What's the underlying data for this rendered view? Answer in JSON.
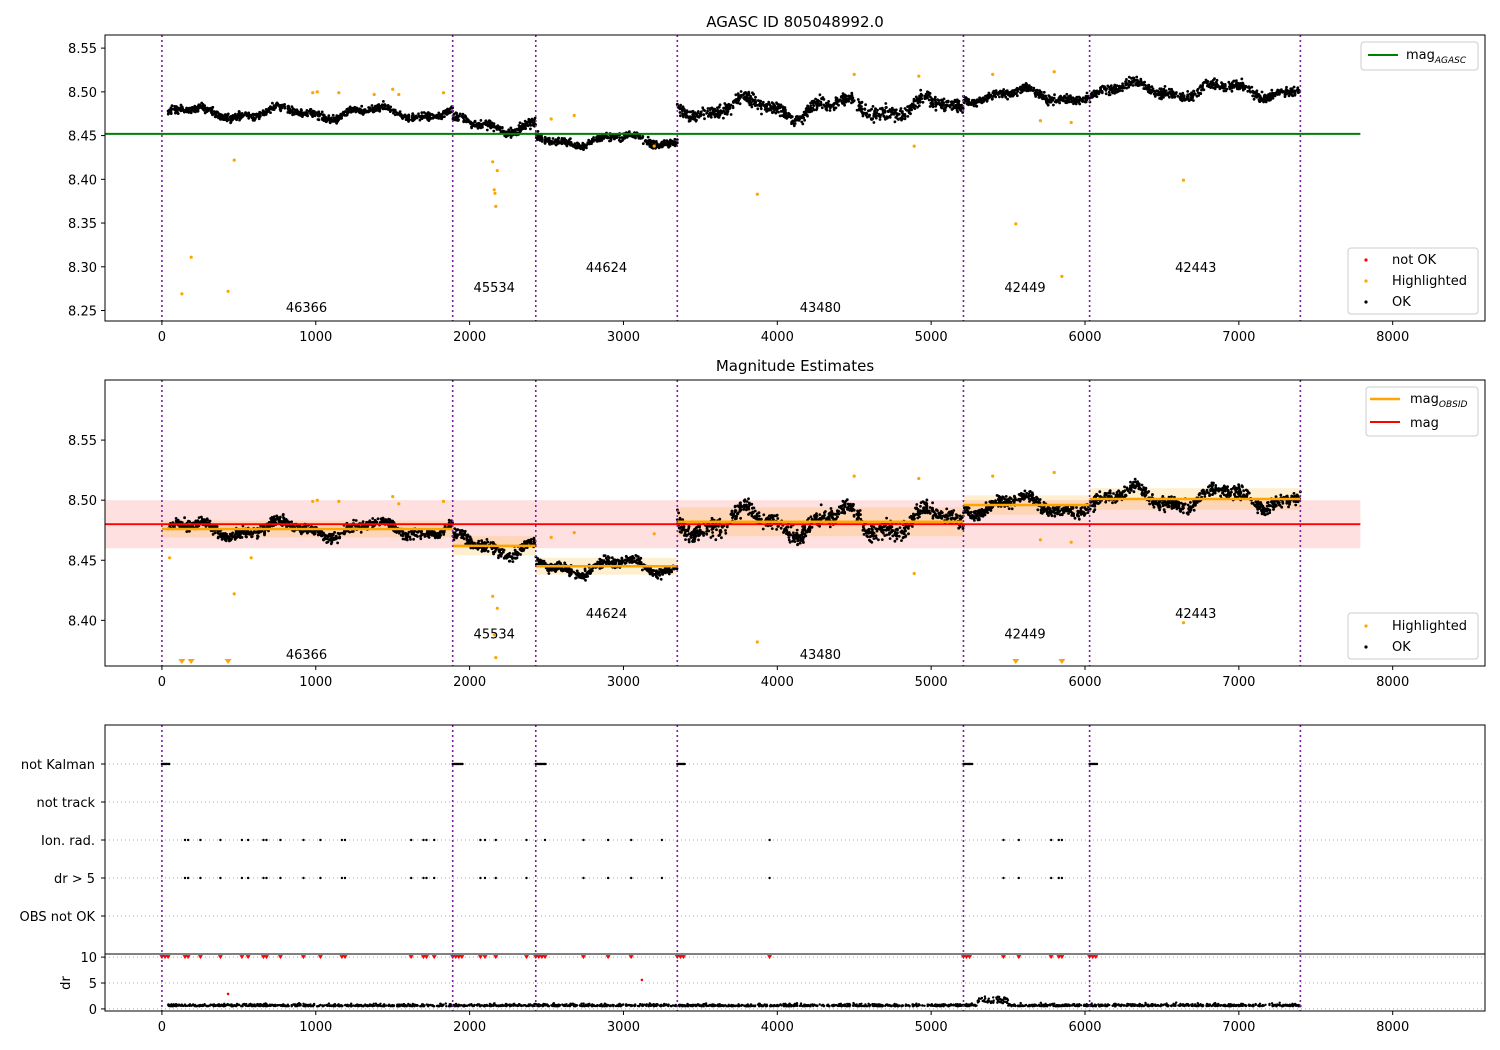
{
  "chart_data": [
    {
      "type": "scatter",
      "title": "AGASC ID 805048992.0",
      "xlim": [
        -370,
        8600
      ],
      "ylim": [
        8.238,
        8.565
      ],
      "xticks": [
        0,
        1000,
        2000,
        3000,
        4000,
        5000,
        6000,
        7000,
        8000
      ],
      "yticks": [
        8.25,
        8.3,
        8.35,
        8.4,
        8.45,
        8.5,
        8.55
      ],
      "obs_boundaries": [
        0,
        1890,
        2430,
        3350,
        5210,
        6030,
        7400
      ],
      "obs_labels": [
        {
          "text": "46366",
          "x": 940,
          "y": 8.254
        },
        {
          "text": "45534",
          "x": 2160,
          "y": 8.277
        },
        {
          "text": "44624",
          "x": 2890,
          "y": 8.3
        },
        {
          "text": "43480",
          "x": 4280,
          "y": 8.254
        },
        {
          "text": "42449",
          "x": 5610,
          "y": 8.277
        },
        {
          "text": "42443",
          "x": 6720,
          "y": 8.3
        }
      ],
      "hline": {
        "name": "mag_AGASC",
        "y": 8.452,
        "x": [
          -370,
          7790
        ],
        "color": "#008000"
      },
      "ok_segments": [
        {
          "x": [
            40,
            1890
          ],
          "base": 8.476,
          "slope": 0.0,
          "noise": 0.007
        },
        {
          "x": [
            1890,
            2430
          ],
          "base": 8.462,
          "slope": 0.0,
          "noise": 0.008
        },
        {
          "x": [
            2430,
            3350
          ],
          "base": 8.445,
          "slope": 0.0,
          "noise": 0.007
        },
        {
          "x": [
            3350,
            5210
          ],
          "base": 8.482,
          "slope": 0.0,
          "noise": 0.012
        },
        {
          "x": [
            5210,
            6030
          ],
          "base": 8.496,
          "slope": 0.0,
          "noise": 0.008
        },
        {
          "x": [
            6030,
            7400
          ],
          "base": 8.502,
          "slope": 0.0,
          "noise": 0.009
        }
      ],
      "highlighted_points": [
        [
          130,
          8.269
        ],
        [
          190,
          8.311
        ],
        [
          430,
          8.272
        ],
        [
          470,
          8.422
        ],
        [
          980,
          8.499
        ],
        [
          1010,
          8.5
        ],
        [
          1150,
          8.499
        ],
        [
          1380,
          8.497
        ],
        [
          1500,
          8.503
        ],
        [
          1540,
          8.497
        ],
        [
          1830,
          8.499
        ],
        [
          2150,
          8.42
        ],
        [
          2160,
          8.388
        ],
        [
          2165,
          8.384
        ],
        [
          2170,
          8.369
        ],
        [
          2180,
          8.41
        ],
        [
          2530,
          8.469
        ],
        [
          2680,
          8.473
        ],
        [
          3200,
          8.438
        ],
        [
          3870,
          8.383
        ],
        [
          4500,
          8.52
        ],
        [
          4890,
          8.438
        ],
        [
          4920,
          8.518
        ],
        [
          5400,
          8.52
        ],
        [
          5550,
          8.349
        ],
        [
          5710,
          8.467
        ],
        [
          5800,
          8.523
        ],
        [
          5850,
          8.289
        ],
        [
          5910,
          8.465
        ],
        [
          6640,
          8.399
        ]
      ],
      "legend_lines": [
        {
          "label": "mag",
          "sub": "AGASC",
          "color": "#008000"
        }
      ],
      "legend_points": [
        {
          "label": "not OK",
          "color": "#ff0000"
        },
        {
          "label": "Highlighted",
          "color": "#ffa500"
        },
        {
          "label": "OK",
          "color": "#000000"
        }
      ]
    },
    {
      "type": "scatter",
      "title": "Magnitude Estimates",
      "xlim": [
        -370,
        8600
      ],
      "ylim": [
        8.362,
        8.6
      ],
      "xticks": [
        0,
        1000,
        2000,
        3000,
        4000,
        5000,
        6000,
        7000,
        8000
      ],
      "yticks": [
        8.4,
        8.45,
        8.5,
        8.55
      ],
      "obs_boundaries": [
        0,
        1890,
        2430,
        3350,
        5210,
        6030,
        7400
      ],
      "obs_labels": [
        {
          "text": "46366",
          "x": 940,
          "y": 8.372
        },
        {
          "text": "45534",
          "x": 2160,
          "y": 8.389
        },
        {
          "text": "44624",
          "x": 2890,
          "y": 8.406
        },
        {
          "text": "43480",
          "x": 4280,
          "y": 8.372
        },
        {
          "text": "42449",
          "x": 5610,
          "y": 8.389
        },
        {
          "text": "42443",
          "x": 6720,
          "y": 8.406
        }
      ],
      "mag": {
        "name": "mag",
        "y": 8.48,
        "band": [
          8.46,
          8.5
        ],
        "x": [
          -370,
          7790
        ],
        "color": "#ff0000"
      },
      "mag_obsid": [
        {
          "x": [
            0,
            1890
          ],
          "y": 8.476,
          "band": [
            8.469,
            8.483
          ]
        },
        {
          "x": [
            1890,
            2430
          ],
          "y": 8.462,
          "band": [
            8.454,
            8.47
          ]
        },
        {
          "x": [
            2430,
            3350
          ],
          "y": 8.445,
          "band": [
            8.438,
            8.452
          ]
        },
        {
          "x": [
            3350,
            5210
          ],
          "y": 8.482,
          "band": [
            8.47,
            8.494
          ]
        },
        {
          "x": [
            5210,
            6030
          ],
          "y": 8.496,
          "band": [
            8.488,
            8.504
          ]
        },
        {
          "x": [
            6030,
            7400
          ],
          "y": 8.501,
          "band": [
            8.492,
            8.51
          ]
        }
      ],
      "ok_segments": [
        {
          "x": [
            40,
            1890
          ],
          "base": 8.476,
          "slope": 0.0,
          "noise": 0.007
        },
        {
          "x": [
            1890,
            2430
          ],
          "base": 8.462,
          "slope": 0.0,
          "noise": 0.008
        },
        {
          "x": [
            2430,
            3350
          ],
          "base": 8.445,
          "slope": 0.0,
          "noise": 0.007
        },
        {
          "x": [
            3350,
            5210
          ],
          "base": 8.482,
          "slope": 0.0,
          "noise": 0.012
        },
        {
          "x": [
            5210,
            6030
          ],
          "base": 8.496,
          "slope": 0.0,
          "noise": 0.008
        },
        {
          "x": [
            6030,
            7400
          ],
          "base": 8.502,
          "slope": 0.0,
          "noise": 0.009
        }
      ],
      "highlighted_points": [
        [
          50,
          8.452
        ],
        [
          470,
          8.422
        ],
        [
          580,
          8.452
        ],
        [
          980,
          8.499
        ],
        [
          1010,
          8.5
        ],
        [
          1150,
          8.499
        ],
        [
          1500,
          8.503
        ],
        [
          1540,
          8.497
        ],
        [
          1830,
          8.499
        ],
        [
          2150,
          8.42
        ],
        [
          2160,
          8.388
        ],
        [
          2170,
          8.369
        ],
        [
          2180,
          8.41
        ],
        [
          2530,
          8.469
        ],
        [
          2680,
          8.473
        ],
        [
          3200,
          8.472
        ],
        [
          3870,
          8.382
        ],
        [
          4500,
          8.52
        ],
        [
          4890,
          8.439
        ],
        [
          4920,
          8.518
        ],
        [
          5400,
          8.52
        ],
        [
          5710,
          8.467
        ],
        [
          5800,
          8.523
        ],
        [
          5910,
          8.465
        ],
        [
          6640,
          8.398
        ]
      ],
      "offscale_markers_x": [
        130,
        190,
        430,
        5550,
        5850
      ],
      "legend_lines": [
        {
          "label": "mag",
          "sub": "OBSID",
          "color": "#ffa500"
        },
        {
          "label": "mag",
          "sub": "",
          "color": "#ff0000"
        }
      ],
      "legend_points": [
        {
          "label": "Highlighted",
          "color": "#ffa500"
        },
        {
          "label": "OK",
          "color": "#000000"
        }
      ]
    },
    {
      "type": "scatter",
      "xlim": [
        -370,
        8600
      ],
      "xticks": [
        0,
        1000,
        2000,
        3000,
        4000,
        5000,
        6000,
        7000,
        8000
      ],
      "obs_boundaries": [
        0,
        1890,
        2430,
        3350,
        5210,
        6030,
        7400
      ],
      "flag_rows": [
        "not Kalman",
        "not track",
        "Ion. rad.",
        "dr > 5",
        "OBS not OK"
      ],
      "not_kalman_x": [
        [
          0,
          50
        ],
        [
          1890,
          1960
        ],
        [
          2430,
          2500
        ],
        [
          3350,
          3400
        ],
        [
          5210,
          5270
        ],
        [
          6030,
          6080
        ]
      ],
      "ion_rad_x": [
        150,
        170,
        250,
        380,
        520,
        560,
        660,
        680,
        770,
        920,
        1030,
        1170,
        1190,
        1620,
        1700,
        1720,
        1770,
        2070,
        2100,
        2170,
        2370,
        2490,
        2740,
        2900,
        3050,
        3250,
        3950,
        5470,
        5570,
        5780,
        5830,
        5850
      ],
      "dr_gt5_x": [
        150,
        170,
        250,
        380,
        520,
        560,
        660,
        680,
        770,
        920,
        1030,
        1170,
        1190,
        1620,
        1700,
        1720,
        1770,
        2070,
        2100,
        2170,
        2370,
        2740,
        2900,
        3050,
        3250,
        3950,
        5470,
        5570,
        5780,
        5830,
        5850
      ],
      "dr_ylabel": "dr",
      "dr_ylim": [
        -0.4,
        10.6
      ],
      "dr_yticks": [
        0,
        5,
        10
      ],
      "dr_red_clip_x": [
        0,
        20,
        40,
        150,
        170,
        250,
        380,
        520,
        560,
        660,
        680,
        770,
        920,
        1030,
        1170,
        1190,
        1620,
        1700,
        1720,
        1770,
        1890,
        1910,
        1930,
        1950,
        2070,
        2100,
        2170,
        2370,
        2430,
        2450,
        2470,
        2490,
        2740,
        2900,
        3050,
        3350,
        3370,
        3390,
        3950,
        5210,
        5230,
        5250,
        5470,
        5570,
        5780,
        5830,
        5850,
        6030,
        6050,
        6070
      ],
      "dr_red_points": [
        [
          430,
          2.9
        ],
        [
          3120,
          5.6
        ]
      ]
    }
  ]
}
